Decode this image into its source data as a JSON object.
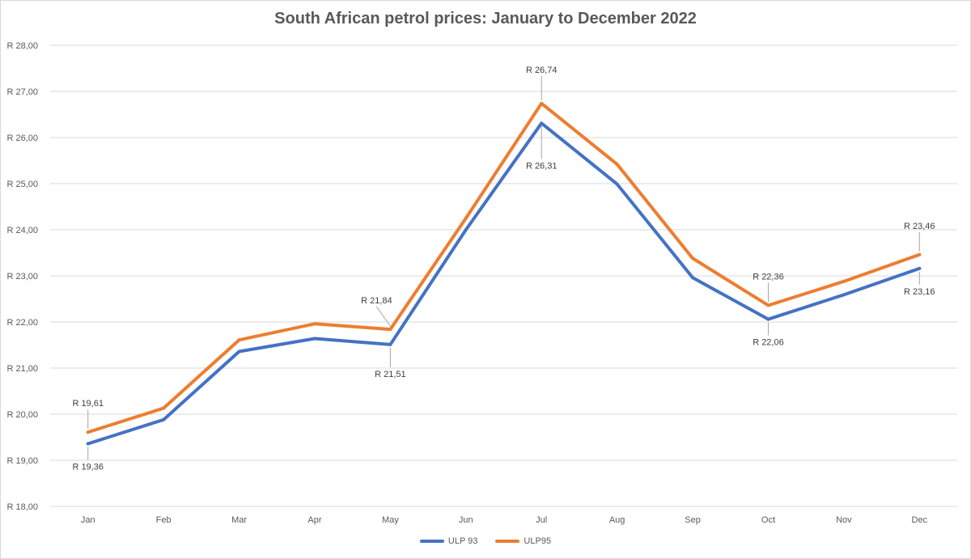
{
  "chart_data": {
    "type": "line",
    "title": "South African petrol prices: January to December 2022",
    "xlabel": "",
    "ylabel": "",
    "categories": [
      "Jan",
      "Feb",
      "Mar",
      "Apr",
      "May",
      "Jun",
      "Jul",
      "Aug",
      "Sep",
      "Oct",
      "Nov",
      "Dec"
    ],
    "ylim": [
      18,
      28
    ],
    "yticks": [
      "R 18,00",
      "R 19,00",
      "R 20,00",
      "R 21,00",
      "R 22,00",
      "R 23,00",
      "R 24,00",
      "R 25,00",
      "R 26,00",
      "R 27,00",
      "R 28,00"
    ],
    "grid": "horizontal",
    "legend_position": "bottom",
    "series": [
      {
        "name": "ULP 93",
        "color": "#4472c4",
        "values": [
          19.36,
          19.88,
          21.36,
          21.64,
          21.51,
          24.0,
          26.31,
          24.99,
          22.96,
          22.06,
          22.59,
          23.16
        ],
        "labels": [
          {
            "index": 0,
            "text": "R 19,36"
          },
          {
            "index": 4,
            "text": "R 21,51"
          },
          {
            "index": 6,
            "text": "R 26,31"
          },
          {
            "index": 9,
            "text": "R 22,06"
          },
          {
            "index": 11,
            "text": "R 23,16"
          }
        ]
      },
      {
        "name": "ULP95",
        "color": "#ed7d31",
        "values": [
          19.61,
          20.13,
          21.61,
          21.96,
          21.84,
          24.25,
          26.74,
          25.42,
          23.38,
          22.36,
          22.88,
          23.46
        ],
        "labels": [
          {
            "index": 0,
            "text": "R 19,61"
          },
          {
            "index": 4,
            "text": "R 21,84"
          },
          {
            "index": 6,
            "text": "R 26,74"
          },
          {
            "index": 9,
            "text": "R 22,36"
          },
          {
            "index": 11,
            "text": "R 23,46"
          }
        ]
      }
    ]
  }
}
